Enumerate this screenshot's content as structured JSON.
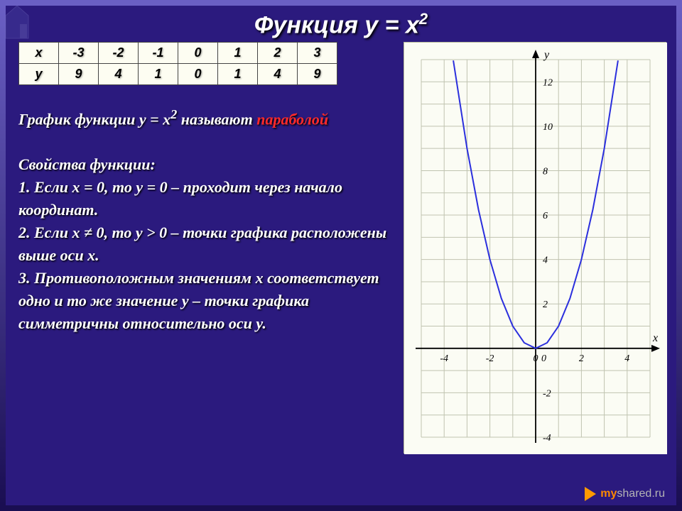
{
  "title_parts": {
    "base": "Функция y = x",
    "exp": "2"
  },
  "table": {
    "row_headers": [
      "x",
      "y"
    ],
    "x": [
      "-3",
      "-2",
      "-1",
      "0",
      "1",
      "2",
      "3"
    ],
    "y": [
      "9",
      "4",
      "1",
      "0",
      "1",
      "4",
      "9"
    ]
  },
  "text": {
    "graph_line_a": "График функции y = x",
    "graph_line_exp": "2",
    "graph_line_b": " называют ",
    "graph_line_highlight": "параболой",
    "props_title": "Свойства функции:",
    "p1": "1. Если x = 0, то y = 0 – проходит через начало координат.",
    "p2": "2. Если x ≠ 0, то y > 0 – точки графика расположены выше оси x.",
    "p3": "3. Противоположным значениям x соответствует одно и то же значение y – точки графика симметричны относительно оси y."
  },
  "chart": {
    "type": "line",
    "background_color": "#fbfcf4",
    "grid_color": "#c0c3b0",
    "axis_color": "#000000",
    "curve_color": "#2b2fdd",
    "curve_width": 2,
    "text_color": "#000000",
    "label_fontsize": 14,
    "axis_label_x": "x",
    "axis_label_y": "y",
    "xlim": [
      -5,
      5
    ],
    "ylim": [
      -4,
      13
    ],
    "xticks": [
      -4,
      -2,
      0,
      2,
      4
    ],
    "yticks": [
      -4,
      -2,
      2,
      4,
      6,
      8,
      10,
      12
    ],
    "series": {
      "x": [
        -3.6,
        -3,
        -2.5,
        -2,
        -1.5,
        -1,
        -0.5,
        0,
        0.5,
        1,
        1.5,
        2,
        2.5,
        3,
        3.6
      ],
      "y": [
        12.96,
        9,
        6.25,
        4,
        2.25,
        1,
        0.25,
        0,
        0.25,
        1,
        2.25,
        4,
        6.25,
        9,
        12.96
      ]
    }
  },
  "footer": {
    "brand_a": "my",
    "brand_b": "shared.ru"
  }
}
